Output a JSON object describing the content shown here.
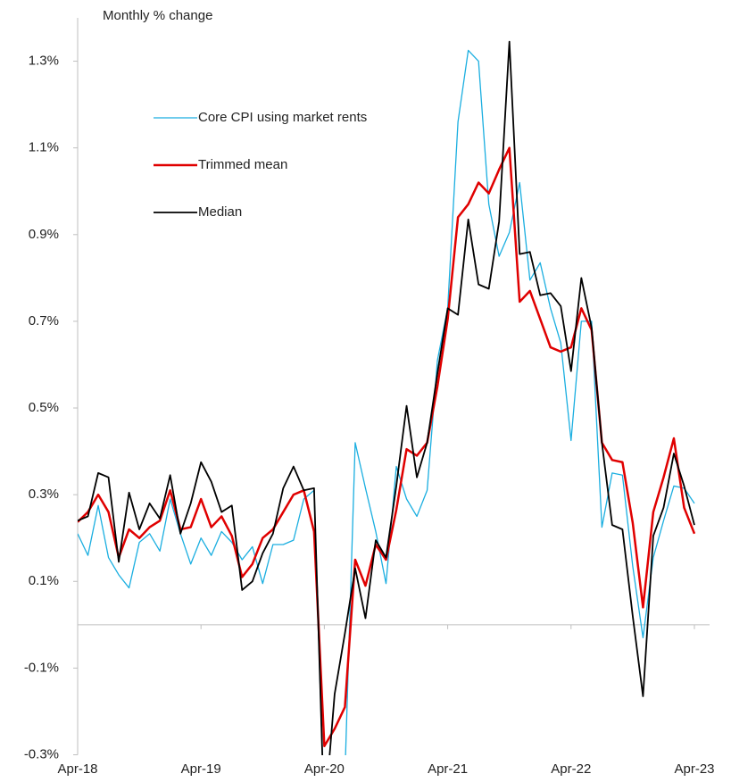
{
  "chart_data": {
    "type": "line",
    "y_axis_label": "Monthly % change",
    "categories": [
      "Apr-18",
      null,
      null,
      null,
      null,
      null,
      null,
      null,
      null,
      null,
      null,
      null,
      "Apr-19",
      null,
      null,
      null,
      null,
      null,
      null,
      null,
      null,
      null,
      null,
      null,
      "Apr-20",
      null,
      null,
      null,
      null,
      null,
      null,
      null,
      null,
      null,
      null,
      null,
      "Apr-21",
      null,
      null,
      null,
      null,
      null,
      null,
      null,
      null,
      null,
      null,
      null,
      "Apr-22",
      null,
      null,
      null,
      null,
      null,
      null,
      null,
      null,
      null,
      null,
      null,
      "Apr-23"
    ],
    "series": [
      {
        "name": "Core CPI using market rents",
        "color": "#1aaee0",
        "values": [
          0.21,
          0.16,
          0.275,
          0.155,
          0.115,
          0.085,
          0.19,
          0.21,
          0.17,
          0.29,
          0.21,
          0.14,
          0.2,
          0.16,
          0.215,
          0.19,
          0.15,
          0.18,
          0.095,
          0.185,
          0.185,
          0.195,
          0.29,
          0.31,
          -0.45,
          -0.45,
          -0.35,
          0.42,
          0.315,
          0.215,
          0.095,
          0.365,
          0.29,
          0.25,
          0.31,
          0.61,
          0.73,
          1.16,
          1.325,
          1.3,
          0.97,
          0.85,
          0.905,
          1.02,
          0.795,
          0.835,
          0.73,
          0.65,
          0.425,
          0.7,
          0.7,
          0.225,
          0.35,
          0.345,
          0.135,
          -0.03,
          0.155,
          0.24,
          0.32,
          0.315,
          0.28
        ]
      },
      {
        "name": "Trimmed mean",
        "color": "#e00000",
        "values": [
          0.237,
          0.26,
          0.3,
          0.26,
          0.155,
          0.22,
          0.2,
          0.225,
          0.24,
          0.31,
          0.22,
          0.225,
          0.29,
          0.225,
          0.25,
          0.205,
          0.11,
          0.14,
          0.2,
          0.22,
          0.26,
          0.3,
          0.31,
          0.215,
          -0.28,
          -0.24,
          -0.19,
          0.15,
          0.09,
          0.185,
          0.15,
          0.265,
          0.405,
          0.39,
          0.42,
          0.55,
          0.705,
          0.94,
          0.97,
          1.02,
          0.995,
          1.05,
          1.1,
          0.745,
          0.77,
          0.705,
          0.64,
          0.63,
          0.64,
          0.73,
          0.68,
          0.42,
          0.38,
          0.375,
          0.235,
          0.04,
          0.26,
          0.34,
          0.43,
          0.27,
          0.21
        ]
      },
      {
        "name": "Median",
        "color": "#000000",
        "values": [
          0.24,
          0.25,
          0.35,
          0.34,
          0.145,
          0.305,
          0.22,
          0.28,
          0.245,
          0.345,
          0.21,
          0.28,
          0.375,
          0.33,
          0.26,
          0.275,
          0.08,
          0.1,
          0.165,
          0.21,
          0.315,
          0.365,
          0.31,
          0.315,
          -0.45,
          -0.16,
          -0.02,
          0.13,
          0.015,
          0.195,
          0.155,
          0.32,
          0.505,
          0.34,
          0.42,
          0.58,
          0.73,
          0.715,
          0.935,
          0.785,
          0.775,
          0.93,
          1.345,
          0.855,
          0.86,
          0.76,
          0.765,
          0.735,
          0.585,
          0.8,
          0.685,
          0.42,
          0.23,
          0.22,
          0.02,
          -0.165,
          0.205,
          0.27,
          0.395,
          0.32,
          0.23
        ]
      }
    ],
    "ylim": [
      -0.3,
      1.4
    ],
    "yticks": [
      {
        "value": -0.3,
        "label": "-0.3%"
      },
      {
        "value": -0.1,
        "label": "-0.1%"
      },
      {
        "value": 0.1,
        "label": "0.1%"
      },
      {
        "value": 0.3,
        "label": "0.3%"
      },
      {
        "value": 0.5,
        "label": "0.5%"
      },
      {
        "value": 0.7,
        "label": "0.7%"
      },
      {
        "value": 0.9,
        "label": "0.9%"
      },
      {
        "value": 1.1,
        "label": "1.1%"
      },
      {
        "value": 1.3,
        "label": "1.3%"
      }
    ]
  }
}
